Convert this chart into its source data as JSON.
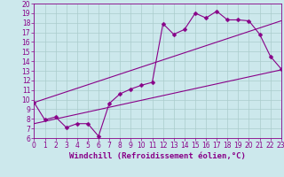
{
  "title": "",
  "xlabel": "Windchill (Refroidissement éolien,°C)",
  "ylabel": "",
  "background_color": "#cce8ec",
  "line_color": "#880088",
  "grid_color": "#aacccc",
  "x_min": 0,
  "x_max": 23,
  "y_min": 6,
  "y_max": 20,
  "x_ticks": [
    0,
    1,
    2,
    3,
    4,
    5,
    6,
    7,
    8,
    9,
    10,
    11,
    12,
    13,
    14,
    15,
    16,
    17,
    18,
    19,
    20,
    21,
    22,
    23
  ],
  "y_ticks": [
    6,
    7,
    8,
    9,
    10,
    11,
    12,
    13,
    14,
    15,
    16,
    17,
    18,
    19,
    20
  ],
  "line1_x": [
    0,
    1,
    2,
    3,
    4,
    5,
    6,
    7,
    8,
    9,
    10,
    11,
    12,
    13,
    14,
    15,
    16,
    17,
    18,
    19,
    20,
    21,
    22,
    23
  ],
  "line1_y": [
    9.7,
    7.9,
    8.2,
    7.1,
    7.5,
    7.5,
    6.2,
    9.6,
    10.6,
    11.1,
    11.5,
    11.8,
    17.9,
    16.8,
    17.3,
    19.0,
    18.5,
    19.2,
    18.3,
    18.3,
    18.2,
    16.8,
    14.5,
    13.2
  ],
  "line2_x": [
    0,
    23
  ],
  "line2_y": [
    7.5,
    13.1
  ],
  "line3_x": [
    0,
    23
  ],
  "line3_y": [
    9.7,
    18.2
  ],
  "marker_size": 2.5,
  "font_size": 6.5,
  "tick_font_size": 5.5
}
